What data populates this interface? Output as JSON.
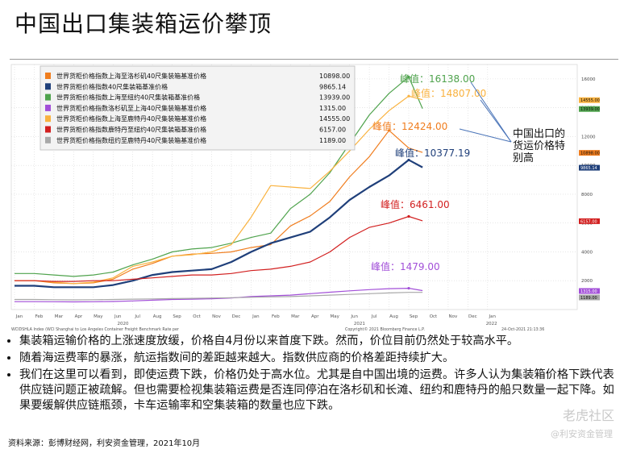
{
  "title": "中国出口集装箱运价攀顶",
  "colors": {
    "orange": "#f07d1e",
    "navy": "#1f3f7a",
    "green": "#4fa34d",
    "purple": "#a24fd8",
    "lightorange": "#f9b23f",
    "red": "#d21f1f",
    "gray": "#a8a8a8"
  },
  "chart_data": {
    "type": "line",
    "xlabel": "",
    "ylabel": "",
    "ylim": [
      0,
      17000
    ],
    "y_ticks": [
      "2000",
      "4000",
      "6000",
      "8000",
      "10000",
      "12000",
      "14000",
      "16000"
    ],
    "month_labels": [
      "Jan",
      "Feb",
      "Mar",
      "Apr",
      "May",
      "Jun",
      "Jul",
      "Aug",
      "Sep",
      "Oct",
      "Nov",
      "Dec",
      "Jan",
      "Feb",
      "Mar",
      "Apr",
      "May",
      "Jun",
      "Jul",
      "Aug",
      "Sep",
      "Oct",
      "Nov",
      "Dec",
      "Jan"
    ],
    "year_labels": [
      "2020",
      "2021",
      "2022"
    ],
    "x_months": [
      0,
      1,
      2,
      3,
      4,
      5,
      6,
      7,
      8,
      9,
      10,
      11,
      12,
      13,
      14,
      15,
      16,
      17,
      18,
      19,
      20,
      20.7
    ],
    "series": [
      {
        "name": "世界货柜价格指数上海至洛杉矶40尺集装箱基准价格",
        "color": "#f07d1e",
        "last": "10898.00",
        "values": [
          2000,
          2000,
          1850,
          1800,
          1850,
          2100,
          2800,
          3200,
          3700,
          3850,
          3900,
          4000,
          4300,
          4500,
          5800,
          6500,
          7500,
          9200,
          10600,
          12424,
          11200,
          10898
        ]
      },
      {
        "name": "世界货柜价格指数40尺集装箱基准价格",
        "color": "#1f3f7a",
        "last": "9865.14",
        "values": [
          1650,
          1650,
          1550,
          1550,
          1550,
          1700,
          2000,
          2400,
          2600,
          2700,
          2800,
          3300,
          4000,
          4600,
          5000,
          5400,
          6400,
          7600,
          8500,
          9300,
          10377,
          9865
        ]
      },
      {
        "name": "世界货柜价格指数上海至纽约40尺集装箱基准价格",
        "color": "#4fa34d",
        "last": "13939.00",
        "values": [
          2500,
          2500,
          2400,
          2300,
          2400,
          2600,
          3100,
          3500,
          4000,
          4200,
          4300,
          4600,
          5000,
          5300,
          7000,
          8000,
          9500,
          11500,
          13500,
          15000,
          16138,
          13939
        ]
      },
      {
        "name": "世界货柜价格指数洛杉矶至上海40尺集装箱基准价格",
        "color": "#a24fd8",
        "last": "1315.00",
        "values": [
          550,
          550,
          540,
          530,
          540,
          560,
          600,
          650,
          700,
          720,
          750,
          800,
          900,
          950,
          1000,
          1100,
          1200,
          1300,
          1380,
          1450,
          1479,
          1315
        ]
      },
      {
        "name": "世界货柜价格指数上海至鹿特丹40尺集装箱基准价格",
        "color": "#f9b23f",
        "last": "14555.00",
        "values": [
          2000,
          2000,
          1900,
          1800,
          1900,
          2200,
          3000,
          3300,
          3700,
          3800,
          4000,
          4500,
          6400,
          8600,
          8500,
          8400,
          9600,
          11000,
          12500,
          13800,
          14807,
          14555
        ]
      },
      {
        "name": "世界货柜价格指数鹿特丹至纽约40尺集装箱基准价格",
        "color": "#d21f1f",
        "last": "6157.00",
        "values": [
          2000,
          2000,
          1950,
          1950,
          2000,
          2000,
          2100,
          2200,
          2300,
          2400,
          2400,
          2500,
          2700,
          2800,
          3000,
          3300,
          4000,
          5000,
          5700,
          6000,
          6461,
          6157
        ]
      },
      {
        "name": "世界货柜价格指数纽约至鹿特丹40尺集装箱基准价格",
        "color": "#a8a8a8",
        "last": "1189.00",
        "values": [
          700,
          700,
          680,
          670,
          680,
          700,
          720,
          740,
          760,
          780,
          800,
          820,
          850,
          880,
          900,
          950,
          1000,
          1050,
          1100,
          1150,
          1190,
          1189
        ]
      }
    ],
    "annotations": [
      {
        "text": "峰值：",
        "value": "16138.00",
        "color": "#4fa34d"
      },
      {
        "text": "峰值：",
        "value": "14807.00",
        "color": "#f9b23f"
      },
      {
        "text": "峰值：",
        "value": "12424.00",
        "color": "#f07d1e"
      },
      {
        "text": "峰值：",
        "value": "10377.19",
        "color": "#1f3f7a"
      },
      {
        "text": "峰值：",
        "value": "6461.00",
        "color": "#d21f1f"
      },
      {
        "text": "峰值：",
        "value": "1479.00",
        "color": "#a24fd8"
      }
    ],
    "callout": [
      "中国出口的",
      "货运价格特",
      "别高"
    ],
    "footnote_left": "WCIDSHLA Index (WCI Shanghai to Los Angeles Container Freight Benchmark Rate per",
    "footnote_mid": "Copyright© 2021 Bloomberg Finance L.P.",
    "footnote_right": "24-Oct-2021 21:13:36"
  },
  "bullets": [
    "集装箱运输价格的上涨速度放缓，价格自4月份以来首度下跌。然而，价位目前仍然处于较高水平。",
    "随着海运费率的暴涨，航运指数间的差距越来越大。指数供应商的价格差距持续扩大。",
    "我们在这里可以看到，即使运费下跌，价格仍处于高水位。尤其是自中国出境的运费。许多人认为集装箱价格下跌代表供应链问题正被疏解。但也需要检视集装箱运费是否连同停泊在洛杉矶和长滩、纽约和鹿特丹的船只数量一起下降。如果要缓解供应链瓶颈，卡车运输率和空集装箱的数量也应下跌。"
  ],
  "source": "资料来源：彭博财经网，利安资金管理，2021年10月",
  "watermark": "老虎社区",
  "watermark2": "@利安资金管理"
}
